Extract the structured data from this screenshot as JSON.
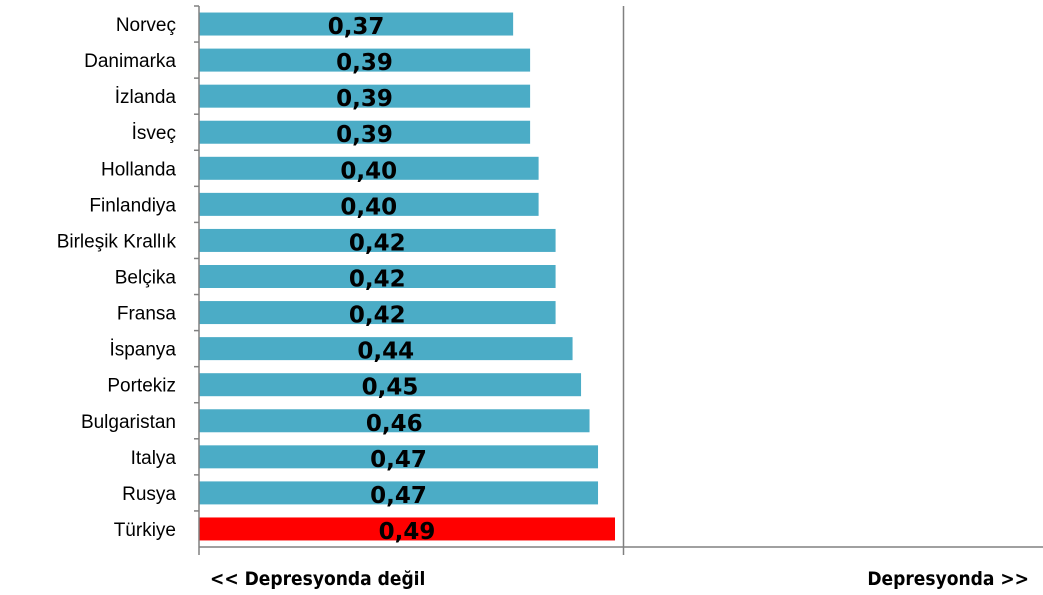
{
  "chart_data": {
    "type": "bar",
    "orientation": "horizontal",
    "categories": [
      "Norveç",
      "Danimarka",
      "İzlanda",
      "İsveç",
      "Hollanda",
      "Finlandiya",
      "Birleşik Krallık",
      "Belçika",
      "Fransa",
      "İspanya",
      "Portekiz",
      "Bulgaristan",
      "Italya",
      "Rusya",
      "Türkiye"
    ],
    "values": [
      0.37,
      0.39,
      0.39,
      0.39,
      0.4,
      0.4,
      0.42,
      0.42,
      0.42,
      0.44,
      0.45,
      0.46,
      0.47,
      0.47,
      0.49
    ],
    "value_labels": [
      "0,37",
      "0,39",
      "0,39",
      "0,39",
      "0,40",
      "0,40",
      "0,42",
      "0,42",
      "0,42",
      "0,44",
      "0,45",
      "0,46",
      "0,47",
      "0,47",
      "0,49"
    ],
    "bar_colors": [
      "#4bacc6",
      "#4bacc6",
      "#4bacc6",
      "#4bacc6",
      "#4bacc6",
      "#4bacc6",
      "#4bacc6",
      "#4bacc6",
      "#4bacc6",
      "#4bacc6",
      "#4bacc6",
      "#4bacc6",
      "#4bacc6",
      "#4bacc6",
      "#ff0000"
    ],
    "xlim": [
      0,
      1
    ],
    "axis_color": "#808080",
    "grid": false,
    "legend": "none",
    "left_note": "<< Depresyonda değil",
    "right_note": "Depresyonda >>"
  }
}
